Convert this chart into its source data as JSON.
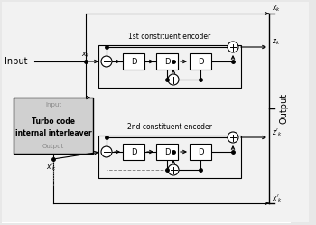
{
  "bg_color": "#e8e8e8",
  "fig_bg": "#e8e8e8",
  "fill_color": "#ffffff",
  "interleaver_fill": "#d0d0d0",
  "line_color": "#000000",
  "dashed_color": "#888888",
  "text_color": "#000000",
  "gray_text": "#888888",
  "font_size": 6.0,
  "small_font": 5.0,
  "label_font": 7.0,
  "encoder1_label": "1st constituent encoder",
  "encoder2_label": "2nd constituent encoder",
  "interleaver_label": "Turbo code\ninternal interleaver",
  "input_label": "Input",
  "output_label": "Output"
}
